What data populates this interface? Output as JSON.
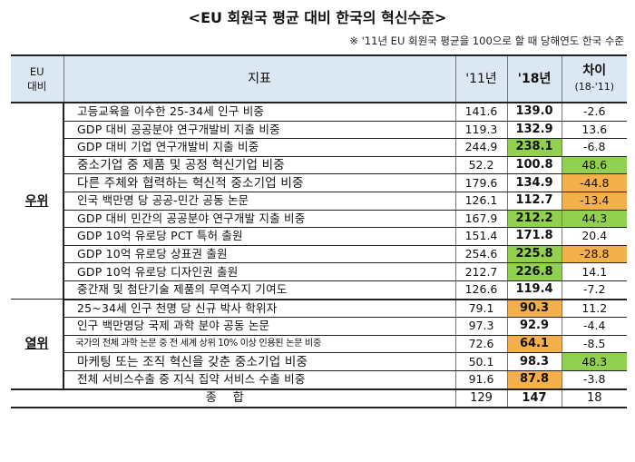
{
  "title": "<EU 회원국 평균 대비 한국의 혁신수준>",
  "note": "※ '11년 EU 회원국 평균을 100으로 할 때 당해연도 한국 수준",
  "headers": {
    "eu": "EU\n대비",
    "indicator": "지표",
    "y11": "'11년",
    "y18": "'18년",
    "diff": "차이",
    "diff_sub": "(18-'11)"
  },
  "colors": {
    "green": "#92d050",
    "orange": "#f4b04a",
    "header_bg": "#dbe7f3"
  },
  "groups": [
    {
      "label": "우위",
      "rows": [
        {
          "name": "고등교육을 이수한 25-34세 인구 비중",
          "y11": "141.6",
          "y18": "139.0",
          "diff": "-2.6"
        },
        {
          "name": "GDP 대비 공공분야 연구개발비 지출 비중",
          "y11": "119.3",
          "y18": "132.9",
          "diff": "13.6"
        },
        {
          "name": "GDP 대비 기업 연구개발비 지출 비중",
          "y11": "244.9",
          "y18": "238.1",
          "diff": "-6.8",
          "y18_hl": "green"
        },
        {
          "name": "중소기업 중 제품 및 공정 혁신기업 비중",
          "y11": "52.2",
          "y18": "100.8",
          "diff": "48.6",
          "diff_hl": "green",
          "size": "big"
        },
        {
          "name": "다른 주체와 협력하는 혁신적 중소기업 비중",
          "y11": "179.6",
          "y18": "134.9",
          "diff": "-44.8",
          "diff_hl": "orange",
          "size": "big"
        },
        {
          "name": "인국 백만명 당 공공-민간 공동 논문",
          "y11": "126.1",
          "y18": "112.7",
          "diff": "-13.4",
          "diff_hl": "orange"
        },
        {
          "name": "GDP 대비 민간의 공공분야 연구개발 지출 비중",
          "y11": "167.9",
          "y18": "212.2",
          "diff": "44.3",
          "y18_hl": "green",
          "diff_hl": "green"
        },
        {
          "name": "GDP 10억 유로당 PCT 특허 출원",
          "y11": "151.4",
          "y18": "171.8",
          "diff": "20.4"
        },
        {
          "name": "GDP 10억 유로당 상표권 출원",
          "y11": "254.6",
          "y18": "225.8",
          "diff": "-28.8",
          "y18_hl": "green",
          "diff_hl": "orange"
        },
        {
          "name": "GDP 10억 유로당 디자인권 출원",
          "y11": "212.7",
          "y18": "226.8",
          "diff": "14.1",
          "y18_hl": "green"
        },
        {
          "name": "중간재 및 첨단기술 제품의 무역수지 기여도",
          "y11": "126.6",
          "y18": "119.4",
          "diff": "-7.2"
        }
      ]
    },
    {
      "label": "열위",
      "rows": [
        {
          "name": "25~34세 인구 천명 당 신규 박사 학위자",
          "y11": "79.1",
          "y18": "90.3",
          "diff": "11.2",
          "y18_hl": "orange"
        },
        {
          "name": "인구 백만명당 국제 과학 분야 공동 논문",
          "y11": "97.3",
          "y18": "92.9",
          "diff": "-4.4"
        },
        {
          "name": "국가의 전체 과학 논문 중 전 세계 상위 10% 이상 인용된 논문 비중",
          "y11": "72.6",
          "y18": "64.1",
          "diff": "-8.5",
          "y18_hl": "orange",
          "size": "tiny"
        },
        {
          "name": "마케팅 또는 조직 혁신을 갖춘 중소기업 비중",
          "y11": "50.1",
          "y18": "98.3",
          "diff": "48.3",
          "diff_hl": "green",
          "size": "big"
        },
        {
          "name": "전체 서비스수출 중 지식 집약 서비스 수출 비중",
          "y11": "91.6",
          "y18": "87.8",
          "diff": "-3.8",
          "y18_hl": "orange"
        }
      ]
    }
  ],
  "total": {
    "label": "종합",
    "y11": "129",
    "y18": "147",
    "diff": "18"
  }
}
